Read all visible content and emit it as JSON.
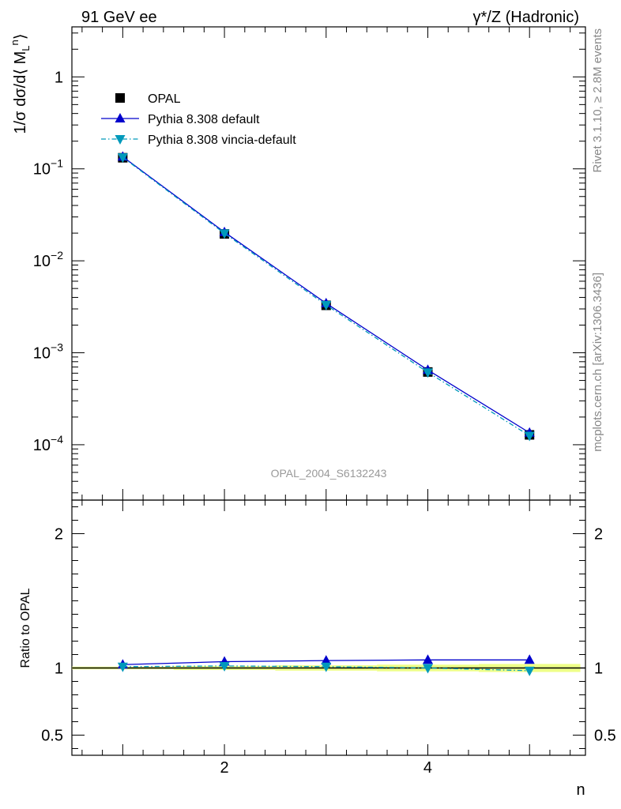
{
  "header": {
    "left": "91 GeV ee",
    "right": "γ*/Z (Hadronic)"
  },
  "side_text": {
    "rivet": "Rivet 3.1.10, ≥ 2.8M events",
    "mcplots": "mcplots.cern.ch [arXiv:1306.3436]"
  },
  "watermark": "OPAL_2004_S6132243",
  "chart_data": [
    {
      "type": "line",
      "panel": "main",
      "ylabel": "1/σ dσ/d⟨ M_L^n⟩",
      "yscale": "log",
      "xlim": [
        0.5,
        5.55
      ],
      "ylim": [
        2.5e-05,
        3.5
      ],
      "y_ticks": [
        {
          "value": 1,
          "label": "1"
        },
        {
          "value": 0.1,
          "label": "10",
          "exp": "−1"
        },
        {
          "value": 0.01,
          "label": "10",
          "exp": "−2"
        },
        {
          "value": 0.001,
          "label": "10",
          "exp": "−3"
        },
        {
          "value": 0.0001,
          "label": "10",
          "exp": "−4"
        }
      ],
      "legend_placement": "top-left",
      "x": [
        1,
        2,
        3,
        4,
        5
      ],
      "series": [
        {
          "name": "OPAL",
          "color": "#000000",
          "marker": "square",
          "values": [
            0.132,
            0.0196,
            0.00328,
            0.000618,
            0.000128
          ]
        },
        {
          "name": "Pythia 8.308 default",
          "color": "#0000cc",
          "marker": "triangle-up",
          "line": "solid",
          "values": [
            0.1355,
            0.0205,
            0.00345,
            0.00065,
            0.000135
          ]
        },
        {
          "name": "Pythia 8.308 vincia-default",
          "color": "#0099bb",
          "marker": "triangle-down",
          "line": "dashdot",
          "values": [
            0.1335,
            0.0199,
            0.00331,
            0.000613,
            0.0001255
          ]
        }
      ]
    },
    {
      "type": "line",
      "panel": "ratio",
      "ylabel": "Ratio to OPAL",
      "xlabel": "n",
      "xlim": [
        0.5,
        5.55
      ],
      "ylim": [
        0.35,
        2.25
      ],
      "x_ticks": [
        2,
        4
      ],
      "y_ticks": [
        0.5,
        1,
        2
      ],
      "x": [
        1,
        2,
        3,
        4,
        5
      ],
      "band": {
        "lower": [
          0.99,
          0.985,
          0.98,
          0.975,
          0.97
        ],
        "upper": [
          1.01,
          1.015,
          1.02,
          1.025,
          1.03
        ],
        "color": "#eeff88"
      },
      "series": [
        {
          "name": "Pythia 8.308 default",
          "color": "#0000cc",
          "values": [
            1.025,
            1.047,
            1.055,
            1.06,
            1.06
          ]
        },
        {
          "name": "Pythia 8.308 vincia-default",
          "color": "#0099bb",
          "values": [
            1.01,
            1.015,
            1.01,
            1.0,
            0.98
          ]
        }
      ]
    }
  ]
}
